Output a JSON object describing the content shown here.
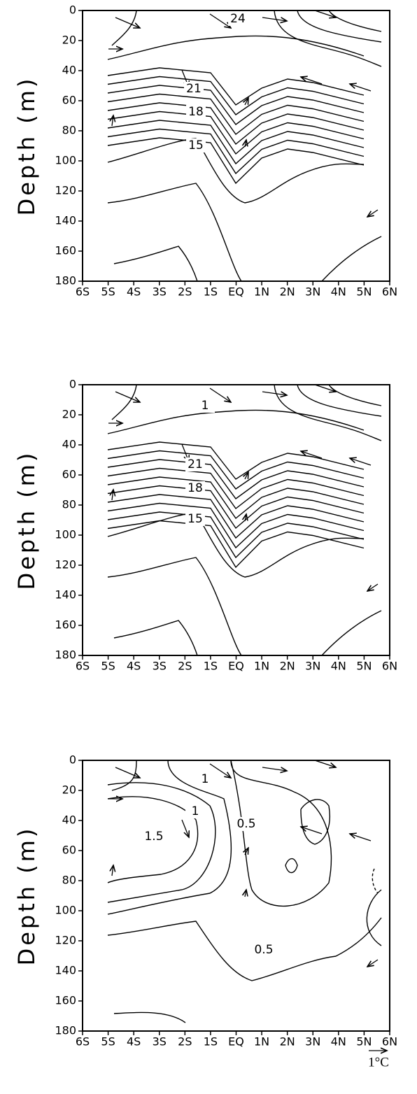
{
  "chart_data": [
    {
      "type": "contour",
      "ylabel": "Depth (m)",
      "xlim": [
        -6,
        6
      ],
      "ylim": [
        180,
        0
      ],
      "xticks": [
        {
          "value": -6,
          "label": "6S"
        },
        {
          "value": -5,
          "label": "5S"
        },
        {
          "value": -4,
          "label": "4S"
        },
        {
          "value": -3,
          "label": "3S"
        },
        {
          "value": -2,
          "label": "2S"
        },
        {
          "value": -1,
          "label": "1S"
        },
        {
          "value": 0,
          "label": "EQ"
        },
        {
          "value": 1,
          "label": "1N"
        },
        {
          "value": 2,
          "label": "2N"
        },
        {
          "value": 3,
          "label": "3N"
        },
        {
          "value": 4,
          "label": "4N"
        },
        {
          "value": 5,
          "label": "5N"
        },
        {
          "value": 6,
          "label": "6N"
        }
      ],
      "yticks": [
        0,
        20,
        40,
        60,
        80,
        100,
        120,
        140,
        160,
        180
      ],
      "contour_labels": [
        24,
        21,
        18,
        15
      ]
    },
    {
      "type": "contour",
      "ylabel": "Depth (m)",
      "xlim": [
        -6,
        6
      ],
      "ylim": [
        180,
        0
      ],
      "xticks": [
        {
          "value": -6,
          "label": "6S"
        },
        {
          "value": -5,
          "label": "5S"
        },
        {
          "value": -4,
          "label": "4S"
        },
        {
          "value": -3,
          "label": "3S"
        },
        {
          "value": -2,
          "label": "2S"
        },
        {
          "value": -1,
          "label": "1S"
        },
        {
          "value": 0,
          "label": "EQ"
        },
        {
          "value": 1,
          "label": "1N"
        },
        {
          "value": 2,
          "label": "2N"
        },
        {
          "value": 3,
          "label": "3N"
        },
        {
          "value": 4,
          "label": "4N"
        },
        {
          "value": 5,
          "label": "5N"
        },
        {
          "value": 6,
          "label": "6N"
        }
      ],
      "yticks": [
        0,
        20,
        40,
        60,
        80,
        100,
        120,
        140,
        160,
        180
      ],
      "contour_labels": [
        1,
        21,
        18,
        15
      ]
    },
    {
      "type": "contour",
      "ylabel": "Depth (m)",
      "xlim": [
        -6,
        6
      ],
      "ylim": [
        180,
        0
      ],
      "xticks": [
        {
          "value": -6,
          "label": "6S"
        },
        {
          "value": -5,
          "label": "5S"
        },
        {
          "value": -4,
          "label": "4S"
        },
        {
          "value": -3,
          "label": "3S"
        },
        {
          "value": -2,
          "label": "2S"
        },
        {
          "value": -1,
          "label": "1S"
        },
        {
          "value": 0,
          "label": "EQ"
        },
        {
          "value": 1,
          "label": "1N"
        },
        {
          "value": 2,
          "label": "2N"
        },
        {
          "value": 3,
          "label": "3N"
        },
        {
          "value": 4,
          "label": "4N"
        },
        {
          "value": 5,
          "label": "5N"
        },
        {
          "value": 6,
          "label": "6N"
        }
      ],
      "yticks": [
        0,
        20,
        40,
        60,
        80,
        100,
        120,
        140,
        160,
        180
      ],
      "contour_labels": [
        1,
        1,
        1.5,
        0.5,
        0.5
      ],
      "vector_scale_label": "1°C"
    }
  ]
}
